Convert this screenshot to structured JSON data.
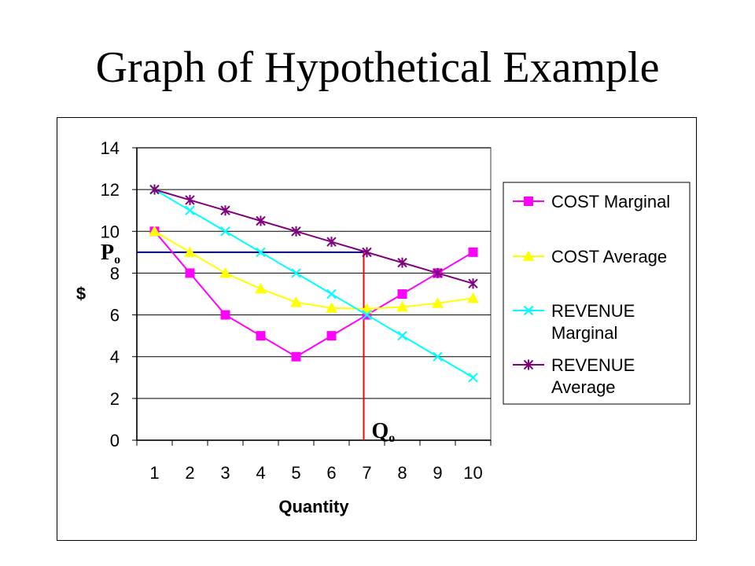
{
  "slide": {
    "title": "Graph of Hypothetical Example"
  },
  "chart_data": {
    "type": "line",
    "title": "",
    "xlabel": "Quantity",
    "ylabel": "$",
    "categories": [
      "1",
      "2",
      "3",
      "4",
      "5",
      "6",
      "7",
      "8",
      "9",
      "10"
    ],
    "ylim": [
      0,
      14
    ],
    "yticks": [
      "0",
      "2",
      "4",
      "6",
      "8",
      "10",
      "12",
      "14"
    ],
    "grid": "horizontal",
    "legend_placement": "right",
    "series": [
      {
        "name": "COST Marginal",
        "legend_lines": [
          "COST Marginal"
        ],
        "color": "#ff00ff",
        "marker": "square",
        "values": [
          10,
          8,
          6,
          5,
          4,
          5,
          6,
          7,
          8,
          9
        ]
      },
      {
        "name": "COST Average",
        "legend_lines": [
          "COST Average"
        ],
        "color": "#ffff00",
        "marker": "triangle",
        "values": [
          10,
          9,
          8,
          7.25,
          6.6,
          6.33,
          6.29,
          6.38,
          6.56,
          6.8
        ]
      },
      {
        "name": "REVENUE Marginal",
        "legend_lines": [
          "REVENUE",
          "Marginal"
        ],
        "color": "#00ffff",
        "marker": "x",
        "values": [
          12,
          11,
          10,
          9,
          8,
          7,
          6,
          5,
          4,
          3
        ]
      },
      {
        "name": "REVENUE Average",
        "legend_lines": [
          "REVENUE",
          "Average"
        ],
        "color": "#800080",
        "marker": "star",
        "values": [
          12,
          11.5,
          11,
          10.5,
          10,
          9.5,
          9,
          8.5,
          8,
          7.5
        ]
      }
    ],
    "annotations": {
      "price": {
        "label_main": "P",
        "label_sub": "o",
        "value": 9,
        "color": "#000080"
      },
      "quantity": {
        "label_main": "Q",
        "label_sub": "o",
        "value": 7,
        "color": "#ff0000"
      }
    },
    "colors": {
      "plot_background": "#ffffff",
      "plot_border": "#808080",
      "gridline": "#000000"
    }
  }
}
